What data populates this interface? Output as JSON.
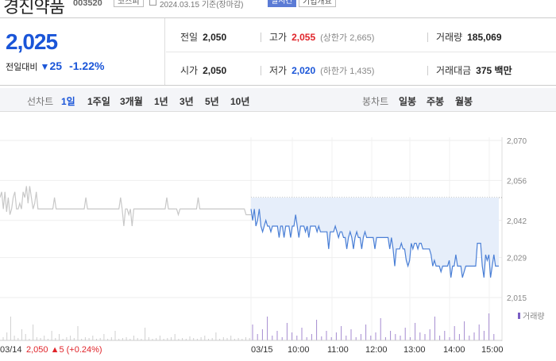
{
  "header": {
    "name": "경진약품",
    "code": "003520",
    "market": "코스피",
    "date": "2024.03.15 기준(장마감)",
    "realtime": "실시간",
    "overview": "기업개요"
  },
  "price": {
    "current": "2,025",
    "prev_label": "전일대비",
    "change": "25",
    "change_pct": "-1.22%"
  },
  "stats": {
    "prev_close_label": "전일",
    "prev_close": "2,050",
    "high_label": "고가",
    "high": "2,055",
    "upper_limit": "(상한가 2,665)",
    "volume_label": "거래량",
    "volume": "185,069",
    "open_label": "시가",
    "open": "2,050",
    "low_label": "저가",
    "low": "2,020",
    "lower_limit": "(하한가 1,435)",
    "value_label": "거래대금",
    "value": "375 백만"
  },
  "tabs": {
    "line_label": "선차트",
    "periods": [
      "1일",
      "1주일",
      "3개월",
      "1년",
      "3년",
      "5년",
      "10년"
    ],
    "selected": "1일",
    "candle_label": "봉차트",
    "candles": [
      "일봉",
      "주봉",
      "월봉"
    ]
  },
  "chart_data": {
    "type": "line",
    "y_ticks": [
      "2,070",
      "2,056",
      "2,042",
      "2,029",
      "2,015"
    ],
    "ylim": [
      2015,
      2070
    ],
    "prev_close": 2050,
    "x_ticks": [
      "03/15",
      "10:00",
      "11:00",
      "12:00",
      "13:00",
      "14:00",
      "15:00"
    ],
    "prev_day_label": "03/14",
    "prev_day_price": "2,050",
    "prev_day_change": "▲5",
    "prev_day_pct": "(+0.24%)",
    "volume_legend": "거래량",
    "colors": {
      "today": "#4a7fd6",
      "prev": "#c8c8c8",
      "fill": "#e6eefa"
    },
    "series": [
      {
        "values": [
          2050,
          2052,
          2046,
          2052,
          2045,
          2050,
          2044,
          2046,
          2050,
          2052,
          2046,
          2046,
          2048,
          2046,
          2052,
          2050,
          2054,
          2048,
          2054,
          2050,
          2046,
          2048,
          2052,
          2046,
          2046,
          2046,
          2046,
          2046,
          2046,
          2046,
          2046,
          2046,
          2046,
          2050,
          2046,
          2046,
          2046,
          2046,
          2046,
          2046,
          2046,
          2046,
          2046,
          2046,
          2046,
          2046,
          2046,
          2046,
          2046,
          2046,
          2046,
          2046,
          2050,
          2046,
          2046,
          2046,
          2046,
          2046,
          2046,
          2046,
          2046,
          2046,
          2046,
          2046,
          2046,
          2046,
          2046,
          2046,
          2046,
          2046,
          2046,
          2046,
          2046,
          2050,
          2046,
          2040,
          2046,
          2046,
          2044,
          2046,
          2040,
          2046,
          2046,
          2046,
          2046,
          2046,
          2046,
          2046,
          2046,
          2046,
          2046,
          2046,
          2046,
          2046,
          2046,
          2046,
          2046,
          2046,
          2046,
          2046,
          2046,
          2050,
          2046,
          2046,
          2046,
          2046,
          2046,
          2046,
          2044,
          2046,
          2046,
          2046,
          2046,
          2046,
          2046,
          2046,
          2046,
          2046,
          2046,
          2046,
          2050,
          2046,
          2046,
          2046,
          2046,
          2046,
          2046,
          2046,
          2046,
          2046,
          2046,
          2046,
          2046,
          2046,
          2046,
          2046,
          2046,
          2046,
          2046,
          2046,
          2046,
          2046,
          2046,
          2046,
          2046,
          2046,
          2046,
          2046,
          2046,
          2044,
          2044,
          2044,
          2044
        ]
      },
      {
        "values": [
          2046,
          2042,
          2046,
          2040,
          2042,
          2046,
          2040,
          2038,
          2040,
          2042,
          2040,
          2040,
          2038,
          2040,
          2040,
          2040,
          2040,
          2036,
          2040,
          2040,
          2036,
          2040,
          2040,
          2040,
          2036,
          2040,
          2040,
          2044,
          2040,
          2036,
          2040,
          2040,
          2040,
          2038,
          2040,
          2036,
          2040,
          2040,
          2040,
          2040,
          2038,
          2040,
          2038,
          2038,
          2038,
          2038,
          2038,
          2032,
          2038,
          2038,
          2038,
          2040,
          2038,
          2036,
          2038,
          2038,
          2036,
          2036,
          2032,
          2036,
          2038,
          2036,
          2032,
          2036,
          2038,
          2036,
          2036,
          2032,
          2036,
          2038,
          2036,
          2036,
          2036,
          2036,
          2036,
          2032,
          2036,
          2036,
          2036,
          2036,
          2036,
          2036,
          2036,
          2036,
          2032,
          2036,
          2032,
          2026,
          2032,
          2032,
          2032,
          2034,
          2032,
          2032,
          2028,
          2026,
          2028,
          2034,
          2032,
          2034,
          2034,
          2032,
          2034,
          2034,
          2032,
          2032,
          2032,
          2032,
          2032,
          2030,
          2026,
          2028,
          2026,
          2026,
          2026,
          2024,
          2026,
          2026,
          2026,
          2026,
          2028,
          2022,
          2026,
          2026,
          2030,
          2026,
          2026,
          2026,
          2022,
          2024,
          2026,
          2026,
          2026,
          2026,
          2026,
          2026,
          2026,
          2034,
          2034,
          2034,
          2026,
          2022,
          2030,
          2028,
          2030,
          2022,
          2026,
          2030,
          2026,
          2026,
          2026
        ]
      }
    ]
  }
}
